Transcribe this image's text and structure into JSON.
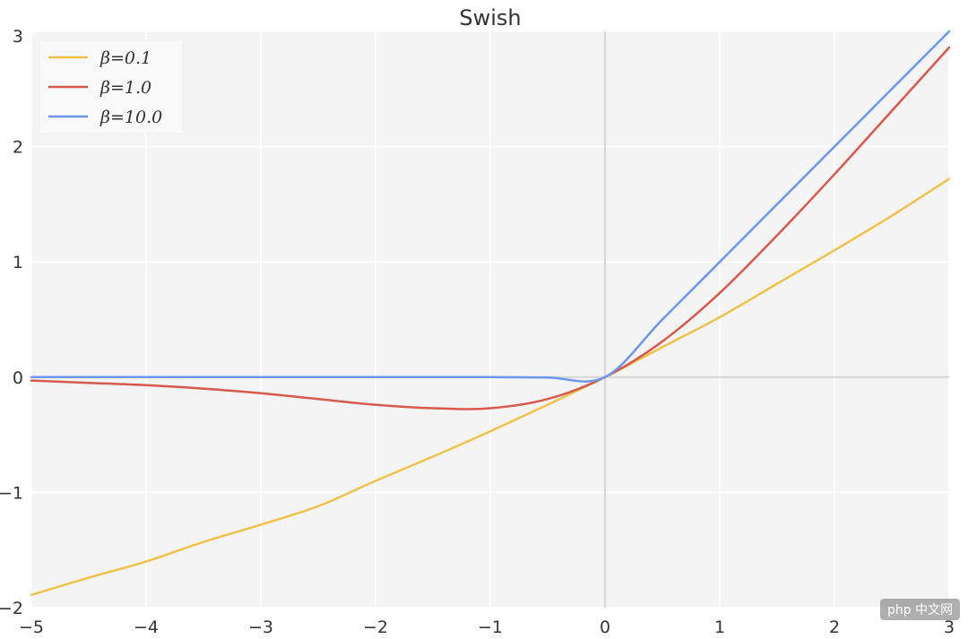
{
  "chart_data": {
    "type": "line",
    "title": "Swish",
    "xlabel": "",
    "ylabel": "",
    "xlim": [
      -5,
      3
    ],
    "ylim": [
      -2,
      3
    ],
    "x_ticks": [
      -5,
      -4,
      -3,
      -2,
      -1,
      0,
      1,
      2,
      3
    ],
    "y_ticks": [
      -2,
      -1,
      0,
      1,
      2,
      3
    ],
    "x_tick_labels": [
      "−5",
      "−4",
      "−3",
      "−2",
      "−1",
      "0",
      "1",
      "2",
      "3"
    ],
    "y_tick_labels": [
      "−2",
      "−1",
      "0",
      "1",
      "2",
      "3"
    ],
    "grid": true,
    "legend_position": "top-left",
    "x": [
      -5,
      -4.5,
      -4,
      -3.5,
      -3,
      -2.5,
      -2,
      -1.5,
      -1,
      -0.5,
      0,
      0.5,
      1,
      1.5,
      2,
      2.5,
      3
    ],
    "series": [
      {
        "name": "β=0.1",
        "color": "#f0c24a",
        "values": [
          -1.89,
          -1.74,
          -1.6,
          -1.43,
          -1.28,
          -1.12,
          -0.9,
          -0.69,
          -0.47,
          -0.24,
          0.0,
          0.26,
          0.52,
          0.81,
          1.1,
          1.4,
          1.72
        ]
      },
      {
        "name": "β=1.0",
        "color": "#d9594c",
        "values": [
          -0.03,
          -0.05,
          -0.07,
          -0.1,
          -0.14,
          -0.19,
          -0.24,
          -0.27,
          -0.27,
          -0.19,
          0.0,
          0.31,
          0.73,
          1.23,
          1.76,
          2.31,
          2.86
        ]
      },
      {
        "name": "β=10.0",
        "color": "#6b97f0",
        "values": [
          0.0,
          0.0,
          0.0,
          0.0,
          0.0,
          0.0,
          0.0,
          0.0,
          0.0,
          -0.003,
          0.0,
          0.5,
          1.0,
          1.5,
          2.0,
          2.5,
          3.0
        ]
      }
    ]
  },
  "watermark": {
    "text": "php 中文网"
  }
}
